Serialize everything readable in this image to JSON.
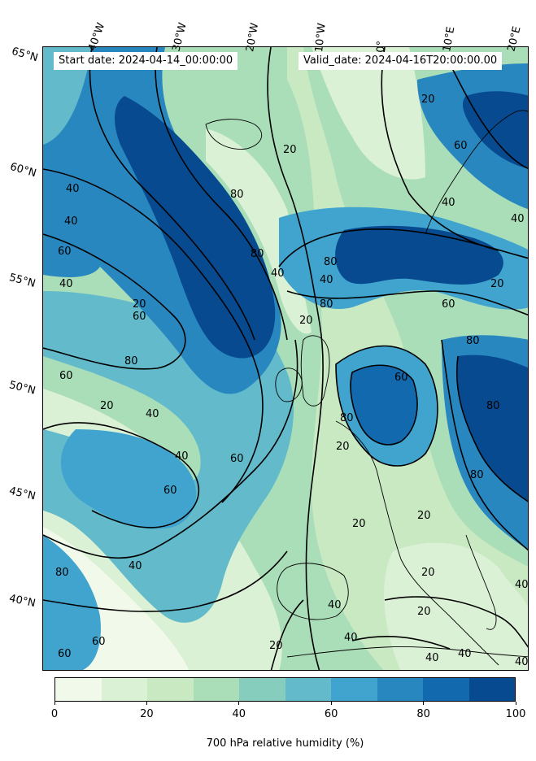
{
  "header": {
    "start_date": "Start date: 2024-04-14_00:00:00",
    "valid_date": "Valid_date: 2024-04-16T20:00:00.00"
  },
  "longitude_ticks": [
    "40°W",
    "30°W",
    "20°W",
    "10°W",
    "0°",
    "10°E",
    "20°E"
  ],
  "latitude_ticks": [
    "65°N",
    "60°N",
    "55°N",
    "50°N",
    "45°N",
    "40°N"
  ],
  "colorbar": {
    "title": "700 hPa relative humidity (%)",
    "tick_labels": [
      "0",
      "20",
      "40",
      "60",
      "80",
      "100"
    ],
    "levels": [
      0,
      10,
      20,
      30,
      40,
      50,
      60,
      70,
      80,
      90,
      100
    ],
    "colors": [
      "#f1faea",
      "#dbf1d5",
      "#c9e9c3",
      "#aadeb8",
      "#86cdbe",
      "#62bacb",
      "#40a4cf",
      "#2987c0",
      "#1369ad",
      "#084a8f"
    ]
  },
  "contour_labels": [
    "20",
    "40",
    "60",
    "80"
  ],
  "contour_color": "#000000",
  "coastline_color": "#000000"
}
